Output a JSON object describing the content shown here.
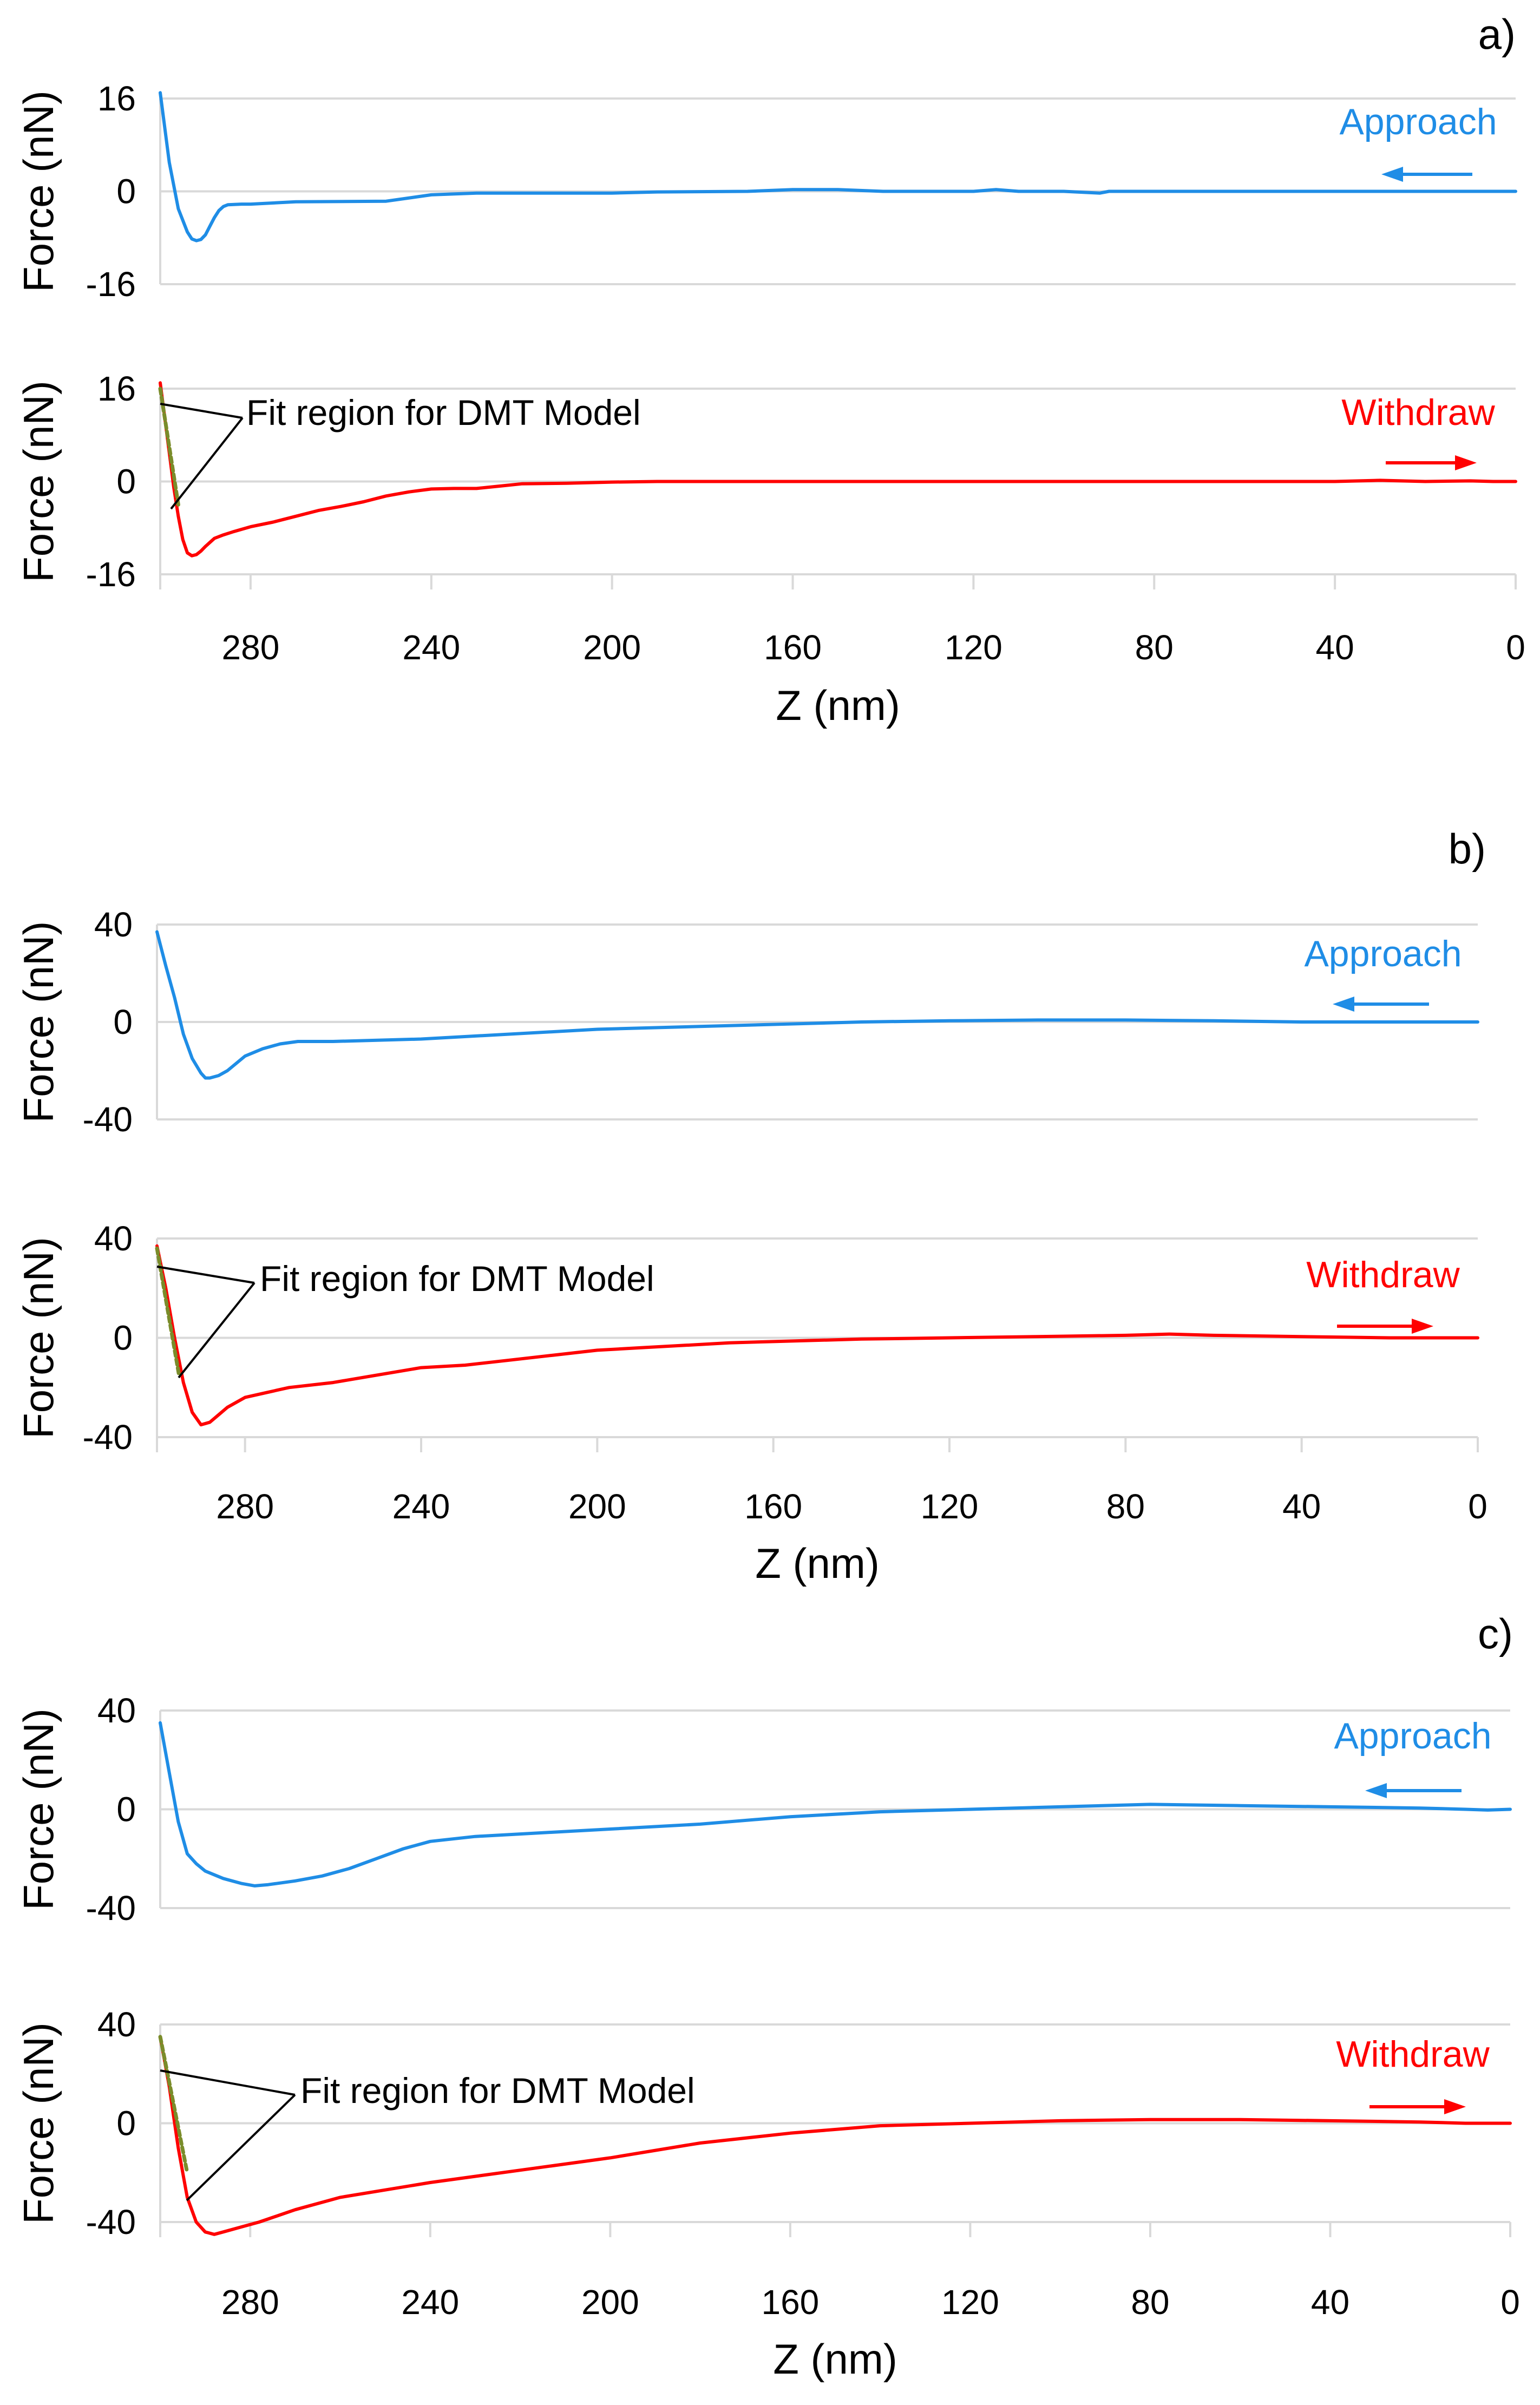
{
  "colors": {
    "approach": "#1f8de6",
    "withdraw": "#ff0000",
    "fit": "#7a8c2a",
    "grid": "#d9d9d9"
  },
  "chart_data": [
    {
      "panel": "a)",
      "type": "line",
      "xlabel": "Z (nm)",
      "xlim": [
        300,
        0
      ],
      "xticks": [
        "280",
        "240",
        "200",
        "160",
        "120",
        "80",
        "40",
        "0"
      ],
      "xtick_values": [
        280,
        240,
        200,
        160,
        120,
        80,
        40,
        0
      ],
      "annotation": "Fit region for DMT Model",
      "subplots": [
        {
          "ylabel": "Force (nN)",
          "ylim": [
            -16,
            16
          ],
          "yticks": [
            "16",
            "0",
            "-16"
          ],
          "ytick_values": [
            16,
            0,
            -16
          ],
          "legend": "Approach",
          "series": [
            {
              "name": "Approach",
              "x": [
                300,
                298,
                296,
                294,
                293,
                292,
                291,
                290,
                289,
                288,
                287,
                286,
                285,
                282,
                280,
                270,
                250,
                240,
                230,
                200,
                190,
                170,
                160,
                150,
                140,
                120,
                115,
                110,
                100,
                92,
                90,
                80,
                40,
                10,
                0
              ],
              "y": [
                17,
                5,
                -3,
                -7,
                -8.2,
                -8.5,
                -8.3,
                -7.5,
                -6,
                -4.5,
                -3.3,
                -2.6,
                -2.3,
                -2.2,
                -2.2,
                -1.8,
                -1.7,
                -0.6,
                -0.3,
                -0.3,
                -0.1,
                0,
                0.3,
                0.3,
                0,
                0,
                0.3,
                0,
                0,
                -0.3,
                0,
                0,
                0,
                0,
                0
              ]
            }
          ]
        },
        {
          "ylabel": "Force (nN)",
          "ylim": [
            -16,
            16
          ],
          "yticks": [
            "16",
            "0",
            "-16"
          ],
          "ytick_values": [
            16,
            0,
            -16
          ],
          "legend": "Withdraw",
          "series": [
            {
              "name": "Withdraw",
              "x": [
                300,
                298,
                297,
                296,
                295,
                294,
                293,
                292,
                291,
                290,
                289,
                288,
                286,
                284,
                280,
                275,
                270,
                265,
                260,
                255,
                250,
                245,
                240,
                235,
                230,
                225,
                220,
                210,
                200,
                190,
                180,
                170,
                160,
                140,
                120,
                80,
                40,
                30,
                20,
                10,
                5,
                0
              ],
              "y": [
                17,
                5,
                -1,
                -6,
                -10,
                -12.3,
                -12.8,
                -12.6,
                -12,
                -11.2,
                -10.5,
                -9.8,
                -9.2,
                -8.7,
                -7.8,
                -7,
                -6,
                -5,
                -4.3,
                -3.5,
                -2.5,
                -1.8,
                -1.3,
                -1.2,
                -1.2,
                -0.8,
                -0.4,
                -0.3,
                -0.1,
                0,
                0,
                0,
                0,
                0,
                0,
                0,
                0,
                0.2,
                0,
                0.1,
                0,
                0
              ]
            },
            {
              "name": "DMT fit",
              "x": [
                300,
                296
              ],
              "y": [
                16,
                -4
              ]
            }
          ]
        }
      ]
    },
    {
      "panel": "b)",
      "type": "line",
      "xlabel": "Z (nm)",
      "xlim": [
        300,
        0
      ],
      "xticks": [
        "280",
        "240",
        "200",
        "160",
        "120",
        "80",
        "40",
        "0"
      ],
      "xtick_values": [
        280,
        240,
        200,
        160,
        120,
        80,
        40,
        0
      ],
      "annotation": "Fit region for DMT Model",
      "subplots": [
        {
          "ylabel": "Force (nN)",
          "ylim": [
            -40,
            40
          ],
          "yticks": [
            "40",
            "0",
            "-40"
          ],
          "ytick_values": [
            40,
            0,
            -40
          ],
          "legend": "Approach",
          "series": [
            {
              "name": "Approach",
              "x": [
                300,
                298,
                296,
                294,
                292,
                290,
                289,
                288,
                286,
                284,
                282,
                280,
                276,
                272,
                268,
                260,
                240,
                220,
                200,
                180,
                160,
                140,
                120,
                100,
                80,
                60,
                40,
                20,
                10,
                0
              ],
              "y": [
                37,
                23,
                10,
                -5,
                -15,
                -21,
                -23,
                -23,
                -22,
                -20,
                -17,
                -14,
                -11,
                -9,
                -8,
                -8,
                -7,
                -5,
                -3,
                -2,
                -1,
                0,
                0.5,
                0.8,
                0.8,
                0.5,
                0,
                0,
                0,
                0
              ]
            }
          ]
        },
        {
          "ylabel": "Force (nN)",
          "ylim": [
            -40,
            40
          ],
          "yticks": [
            "40",
            "0",
            "-40"
          ],
          "ytick_values": [
            40,
            0,
            -40
          ],
          "legend": "Withdraw",
          "series": [
            {
              "name": "Withdraw",
              "x": [
                300,
                298,
                296,
                294,
                292,
                290,
                288,
                286,
                284,
                280,
                275,
                270,
                260,
                250,
                240,
                230,
                220,
                210,
                200,
                190,
                180,
                170,
                160,
                140,
                120,
                100,
                80,
                70,
                60,
                40,
                20,
                10,
                0
              ],
              "y": [
                37,
                20,
                0,
                -18,
                -30,
                -35,
                -34,
                -31,
                -28,
                -24,
                -22,
                -20,
                -18,
                -15,
                -12,
                -11,
                -9,
                -7,
                -5,
                -4,
                -3,
                -2,
                -1.5,
                -0.5,
                0,
                0.5,
                1,
                1.5,
                1,
                0.5,
                0,
                0,
                0
              ]
            },
            {
              "name": "DMT fit",
              "x": [
                300,
                295
              ],
              "y": [
                36,
                -15
              ]
            }
          ]
        }
      ]
    },
    {
      "panel": "c)",
      "type": "line",
      "xlabel": "Z (nm)",
      "xlim": [
        300,
        0
      ],
      "xticks": [
        "280",
        "240",
        "200",
        "160",
        "120",
        "80",
        "40",
        "0"
      ],
      "xtick_values": [
        280,
        240,
        200,
        160,
        120,
        80,
        40,
        0
      ],
      "annotation": "Fit region for DMT Model",
      "subplots": [
        {
          "ylabel": "Force (nN)",
          "ylim": [
            -40,
            40
          ],
          "yticks": [
            "40",
            "0",
            "-40"
          ],
          "ytick_values": [
            40,
            0,
            -40
          ],
          "legend": "Approach",
          "series": [
            {
              "name": "Approach",
              "x": [
                300,
                298,
                296,
                294,
                292,
                290,
                286,
                282,
                279,
                276,
                270,
                264,
                258,
                252,
                246,
                240,
                230,
                220,
                200,
                180,
                160,
                140,
                120,
                100,
                80,
                60,
                40,
                20,
                10,
                5,
                0
              ],
              "y": [
                35,
                15,
                -5,
                -18,
                -22,
                -25,
                -28,
                -30,
                -31,
                -30.5,
                -29,
                -27,
                -24,
                -20,
                -16,
                -13,
                -11,
                -10,
                -8,
                -6,
                -3,
                -1,
                0,
                1,
                2,
                1.5,
                1,
                0.5,
                0,
                -0.3,
                0
              ]
            }
          ]
        },
        {
          "ylabel": "Force (nN)",
          "ylim": [
            -40,
            40
          ],
          "yticks": [
            "40",
            "0",
            "-40"
          ],
          "ytick_values": [
            40,
            0,
            -40
          ],
          "legend": "Withdraw",
          "series": [
            {
              "name": "Withdraw",
              "x": [
                300,
                298,
                296,
                294,
                292,
                290,
                288,
                286,
                282,
                278,
                270,
                260,
                250,
                240,
                220,
                200,
                180,
                160,
                140,
                120,
                100,
                80,
                60,
                40,
                20,
                10,
                0
              ],
              "y": [
                35,
                15,
                -10,
                -30,
                -40,
                -44,
                -45,
                -44,
                -42,
                -40,
                -35,
                -30,
                -27,
                -24,
                -19,
                -14,
                -8,
                -4,
                -1,
                0,
                1,
                1.5,
                1.5,
                1,
                0.5,
                0,
                0
              ]
            },
            {
              "name": "DMT fit",
              "x": [
                300,
                294
              ],
              "y": [
                35,
                -20
              ]
            }
          ]
        }
      ]
    }
  ]
}
